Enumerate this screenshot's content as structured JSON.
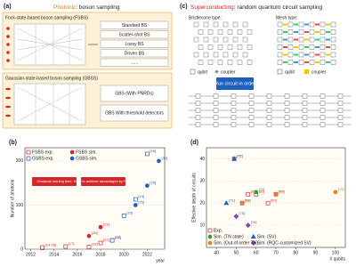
{
  "panel_a": {
    "tag": "(a)",
    "title_em": "Photonic",
    "title_rest": ": boson sampling",
    "fsbs_title": "Fock-state-based boson sampling (FSBS)",
    "fsbs_boxes": [
      "Standard BS",
      "Scatter-shot BS",
      "Lossy BS",
      "Driven BS",
      "......"
    ],
    "gbs_title": "Gaussian-state-based boson sampling (GBSS)",
    "gbs_boxes": [
      "GBS (With PNRDs)",
      "GBS With threshold detectors"
    ]
  },
  "panel_c": {
    "tag": "(c)",
    "title_em": "Superconducting",
    "title_rest": ": random quantum circuit sampling",
    "bristlecone": "Bristlecone type:",
    "mesh": "Mesh type:",
    "qubit": "qubit",
    "coupler": "coupler",
    "run": "Run circuit in order"
  },
  "panel_b": {
    "type": "scatter",
    "tag": "(b)",
    "xlabel": "year",
    "ylabel": "Number of photons",
    "xlim": [
      2011.5,
      2023.5
    ],
    "xticks": [
      2012,
      2014,
      2016,
      2018,
      2020,
      2022
    ],
    "ylim": [
      0,
      230
    ],
    "yticks": [
      0,
      100,
      200
    ],
    "grid": true,
    "legend": "top-left",
    "annotations": [
      "Classical running time",
      "Hard to achieve advantages by FSBS"
    ],
    "series": [
      {
        "name": "FSBS exp.",
        "color": "#d62728",
        "marker": "square-open",
        "x": [
          2013,
          2013,
          2015,
          2017,
          2018,
          2019
        ],
        "y": [
          3,
          4,
          6,
          5,
          14,
          20
        ],
        "labels": [
          "[14-16]",
          null,
          "[17]",
          "[18]",
          "[27]",
          "[28]"
        ]
      },
      {
        "name": "FSBS sim.",
        "color": "#d62728",
        "marker": "circle",
        "x": [
          2017,
          2018
        ],
        "y": [
          30,
          50
        ],
        "labels": [
          "[20]",
          "[21]"
        ]
      },
      {
        "name": "GSBS exp.",
        "color": "#1f5fbf",
        "marker": "square-open",
        "x": [
          2019,
          2020,
          2021,
          2022
        ],
        "y": [
          20,
          76,
          113,
          216
        ],
        "labels": [
          "[22]",
          "[23]",
          "[24]",
          "[29]"
        ]
      },
      {
        "name": "GSBS sim.",
        "color": "#1f5fbf",
        "marker": "circle",
        "x": [
          2021,
          2022,
          2023
        ],
        "y": [
          100,
          144,
          200
        ],
        "labels": [
          "[25]",
          "[26]",
          "[30]"
        ]
      }
    ]
  },
  "panel_d": {
    "type": "scatter",
    "tag": "(d)",
    "xlabel": "# qubits",
    "ylabel": "Effective depth of circuits",
    "xlim": [
      35,
      105
    ],
    "xticks": [
      40,
      50,
      60,
      70,
      80,
      90,
      100
    ],
    "ylim": [
      0,
      45
    ],
    "yticks": [
      10,
      20,
      30,
      40
    ],
    "grid": true,
    "legend": "bottom-left",
    "series": [
      {
        "name": "Exp.",
        "color": "#d62728",
        "marker": "square-open",
        "x": [
          49,
          53,
          56,
          60,
          66,
          70
        ],
        "y": [
          40,
          20,
          24,
          24,
          20,
          24
        ],
        "labels": [
          "[7]",
          "[8]",
          "[61]",
          "[62]",
          "[63]",
          "[65]"
        ]
      },
      {
        "name": "Sim. (SV)",
        "color": "#1f5fbf",
        "marker": "triangle",
        "x": [
          45,
          49
        ],
        "y": [
          20,
          40
        ],
        "labels": [
          "[71]",
          "[72]"
        ]
      },
      {
        "name": "Sim. (TN state)",
        "color": "#2ca02c",
        "marker": "circle",
        "x": [
          53,
          60
        ],
        "y": [
          20,
          25
        ],
        "labels": [
          "[73]",
          "[74]"
        ]
      },
      {
        "name": "Sim. (RQC-customized SV)",
        "color": "#8e44ad",
        "marker": "diamond",
        "x": [
          50,
          56
        ],
        "y": [
          14,
          10
        ],
        "labels": [
          "[75]",
          "[76]"
        ]
      },
      {
        "name": "Sim. (Out-of-order TN)",
        "color": "#e67e22",
        "marker": "circle",
        "x": [
          53,
          70,
          100
        ],
        "y": [
          20,
          24,
          25
        ],
        "labels": [
          "[77]",
          "[78]",
          "[79]"
        ]
      }
    ]
  }
}
